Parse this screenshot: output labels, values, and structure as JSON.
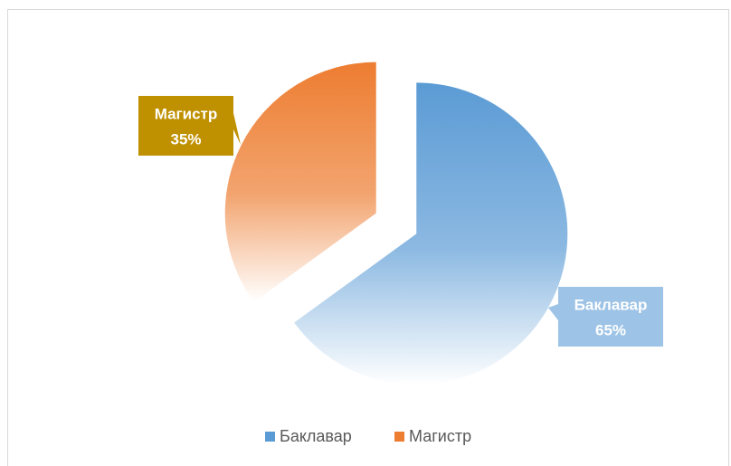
{
  "chart_data": {
    "type": "pie",
    "categories": [
      "Баклавар",
      "Магистр"
    ],
    "values": [
      65,
      35
    ],
    "value_labels": [
      "65%",
      "35%"
    ],
    "colors": [
      "#5b9bd5",
      "#ed7d31"
    ],
    "label_colors": [
      "#9dc3e6",
      "#bf9000"
    ],
    "legend": "bottom"
  }
}
